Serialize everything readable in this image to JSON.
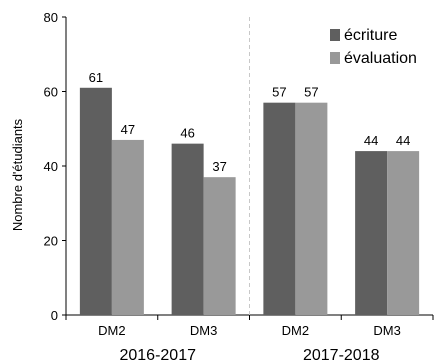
{
  "chart_data": {
    "type": "bar",
    "ylabel": "Nombre d'étudiants",
    "xlabel": "",
    "ylim": [
      0,
      80
    ],
    "yticks": [
      0,
      20,
      40,
      60,
      80
    ],
    "grid": false,
    "legend_position": "top-right",
    "groups": [
      {
        "label": "2016-2017",
        "categories": [
          "DM2",
          "DM3"
        ]
      },
      {
        "label": "2017-2018",
        "categories": [
          "DM2",
          "DM3"
        ]
      }
    ],
    "categories": [
      "DM2",
      "DM3",
      "DM2",
      "DM3"
    ],
    "series": [
      {
        "name": "écriture",
        "color": "#5f5f5f",
        "values": [
          61,
          46,
          57,
          44
        ],
        "labels": [
          "61",
          "46",
          "57",
          "44"
        ]
      },
      {
        "name": "évaluation",
        "color": "#999999",
        "values": [
          47,
          37,
          57,
          44
        ],
        "labels": [
          "47",
          "37",
          "57",
          "44"
        ]
      }
    ]
  }
}
